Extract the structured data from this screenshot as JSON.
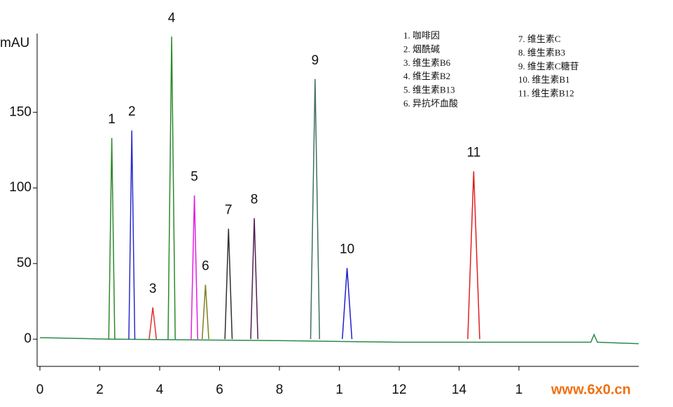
{
  "chart_data": {
    "type": "line",
    "y_label": "mAU",
    "watermark": "www.6x0.cn",
    "xlim": [
      0,
      20
    ],
    "ylim": [
      -18,
      202
    ],
    "xticks": [
      0,
      2,
      4,
      6,
      8,
      {
        "value": 10,
        "label": "1"
      },
      12,
      14,
      {
        "value": 16,
        "label": "1"
      }
    ],
    "yticks": [
      0,
      50,
      100,
      150
    ],
    "baseline": {
      "x": [
        0,
        2.3,
        8,
        12,
        18.4,
        18.51,
        18.62,
        20
      ],
      "values": [
        1,
        0,
        -1,
        -2,
        -2,
        3,
        -2,
        -3
      ],
      "color": "#2a8a4a"
    },
    "series": [
      {
        "name": "1. 咖啡因",
        "label": "1",
        "color": "#2a8a2a",
        "x": [
          2.3,
          2.4,
          2.5
        ],
        "values": [
          0,
          133,
          0
        ]
      },
      {
        "name": "2. 烟酰碱",
        "label": "2",
        "color": "#2a2ad0",
        "x": [
          2.97,
          3.07,
          3.17
        ],
        "values": [
          0,
          138,
          0
        ]
      },
      {
        "name": "3. 维生素B6",
        "label": "3",
        "color": "#e03030",
        "x": [
          3.65,
          3.77,
          3.89
        ],
        "values": [
          0,
          21,
          0
        ]
      },
      {
        "name": "4. 维生素B2",
        "label": "4",
        "color": "#2a8a2a",
        "x": [
          4.28,
          4.4,
          4.52
        ],
        "values": [
          0,
          200,
          0
        ]
      },
      {
        "name": "5. 维生素B13",
        "label": "5",
        "color": "#e020e0",
        "x": [
          5.05,
          5.16,
          5.27
        ],
        "values": [
          0,
          95,
          0
        ]
      },
      {
        "name": "6. 异抗坏血酸",
        "label": "6",
        "color": "#808020",
        "x": [
          5.42,
          5.53,
          5.64
        ],
        "values": [
          0,
          36,
          0
        ]
      },
      {
        "name": "7. 维生素C",
        "label": "7",
        "color": "#303030",
        "x": [
          6.18,
          6.3,
          6.42
        ],
        "values": [
          0,
          73,
          0
        ]
      },
      {
        "name": "8. 维生素B3",
        "label": "8",
        "color": "#502050",
        "x": [
          7.04,
          7.16,
          7.28
        ],
        "values": [
          0,
          80,
          0
        ]
      },
      {
        "name": "9. 维生素C糖苷",
        "label": "9",
        "color": "#407060",
        "x": [
          9.04,
          9.19,
          9.34
        ],
        "values": [
          0,
          172,
          0
        ]
      },
      {
        "name": "10. 维生素B1",
        "label": "10",
        "color": "#2020d0",
        "x": [
          10.1,
          10.26,
          10.42
        ],
        "values": [
          0,
          47,
          0
        ]
      },
      {
        "name": "11. 维生素B12",
        "label": "11",
        "color": "#e02020",
        "x": [
          14.29,
          14.49,
          14.69
        ],
        "values": [
          0,
          111,
          0
        ]
      }
    ]
  }
}
